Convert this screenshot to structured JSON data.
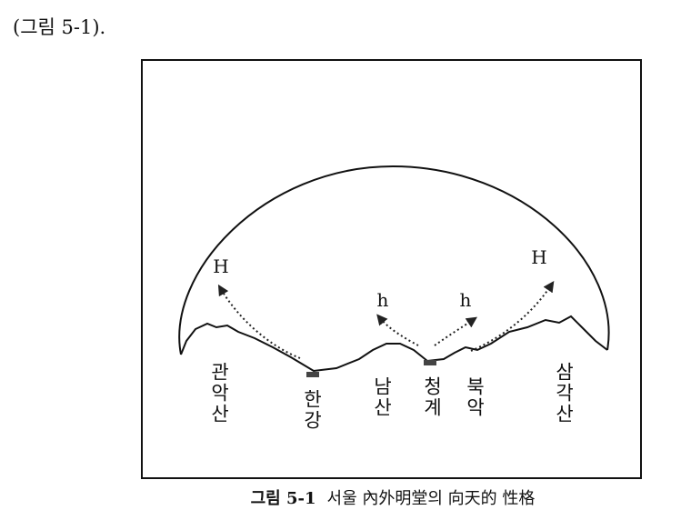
{
  "header": {
    "text": "(그림 5-1)."
  },
  "figure": {
    "annotations": [
      "H",
      "H",
      "h",
      "h"
    ],
    "labels": [
      "관악산",
      "한강",
      "남산",
      "청계",
      "북악",
      "삼각산"
    ]
  },
  "caption": {
    "label": "그림 5-1",
    "text": "서울 內外明堂의 向天的 性格"
  }
}
